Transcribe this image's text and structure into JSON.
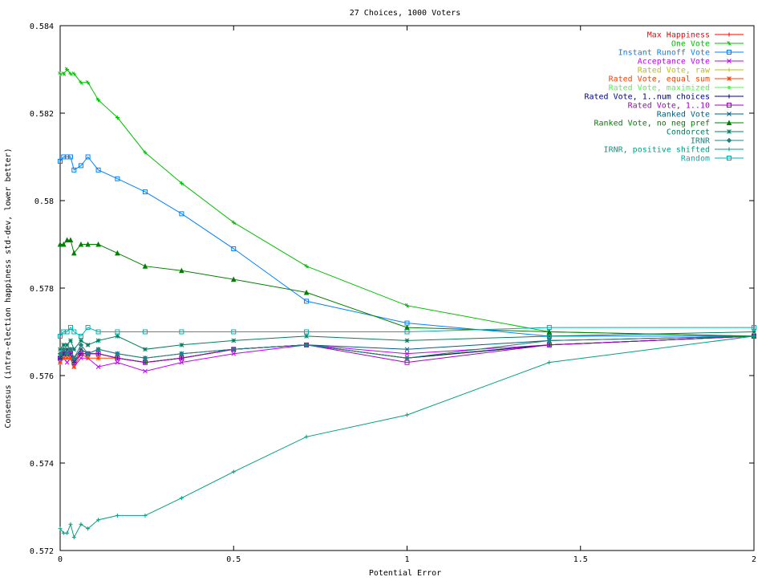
{
  "chart_data": {
    "type": "line",
    "title": "27 Choices, 1000 Voters",
    "xlabel": "Potential Error",
    "ylabel": "Consensus (intra-election happiness std-dev, lower better)",
    "xlim": [
      0,
      2
    ],
    "ylim": [
      0.572,
      0.584
    ],
    "xticks": [
      0,
      0.5,
      1,
      1.5,
      2
    ],
    "xtick_labels": [
      "0",
      "0.5",
      "1",
      "1.5",
      "2"
    ],
    "yticks": [
      0.572,
      0.574,
      0.576,
      0.578,
      0.58,
      0.582,
      0.584
    ],
    "ytick_labels": [
      "0.572",
      "0.574",
      "0.576",
      "0.578",
      "0.58",
      "0.582",
      "0.584"
    ],
    "grid": false,
    "legend_position": "top-right",
    "x": [
      0,
      0.01,
      0.02,
      0.03,
      0.04,
      0.06,
      0.08,
      0.11,
      0.165,
      0.245,
      0.35,
      0.5,
      0.71,
      1.0,
      1.41,
      2.0
    ],
    "series": [
      {
        "name": "Max Happiness",
        "color": "#ff0000",
        "marker": "plus",
        "values": [
          0.5764,
          0.5765,
          0.5766,
          0.5765,
          0.5763,
          0.5766,
          0.5765,
          0.5765,
          0.5764,
          0.5763,
          0.5764,
          0.5766,
          0.5767,
          0.5764,
          0.5767,
          0.5769
        ]
      },
      {
        "name": "One Vote",
        "color": "#00c000",
        "marker": "cross",
        "values": [
          0.5829,
          0.5829,
          0.583,
          0.5829,
          0.5829,
          0.5827,
          0.5827,
          0.5823,
          0.5819,
          0.5811,
          0.5804,
          0.5795,
          0.5785,
          0.5776,
          0.577,
          0.5769
        ]
      },
      {
        "name": "Instant Runoff Vote",
        "color": "#0080ff",
        "marker": "square",
        "values": [
          0.5809,
          0.581,
          0.581,
          0.581,
          0.5807,
          0.5808,
          0.581,
          0.5807,
          0.5805,
          0.5802,
          0.5797,
          0.5789,
          0.5777,
          0.5772,
          0.5769,
          0.5769
        ]
      },
      {
        "name": "Acceptance Vote",
        "color": "#c000ff",
        "marker": "x",
        "values": [
          0.5763,
          0.5764,
          0.5763,
          0.5764,
          0.5762,
          0.5764,
          0.5764,
          0.5762,
          0.5763,
          0.5761,
          0.5763,
          0.5765,
          0.5767,
          0.5765,
          0.5767,
          0.5769
        ]
      },
      {
        "name": "Rated Vote, raw",
        "color": "#c0c000",
        "marker": "plus",
        "values": [
          0.5764,
          0.5765,
          0.5765,
          0.5765,
          0.5763,
          0.5765,
          0.5765,
          0.5765,
          0.5764,
          0.5763,
          0.5764,
          0.5766,
          0.5767,
          0.5764,
          0.5768,
          0.5769
        ]
      },
      {
        "name": "Rated Vote, equal sum",
        "color": "#ff4000",
        "marker": "star",
        "values": [
          0.5763,
          0.5764,
          0.5764,
          0.5764,
          0.5762,
          0.5765,
          0.5764,
          0.5764,
          0.5764,
          0.5763,
          0.5764,
          0.5766,
          0.5767,
          0.5764,
          0.5767,
          0.5769
        ]
      },
      {
        "name": "Rated Vote, maximized",
        "color": "#40ff40",
        "marker": "dot",
        "values": [
          0.5764,
          0.5765,
          0.5765,
          0.5765,
          0.5763,
          0.5765,
          0.5765,
          0.5765,
          0.5764,
          0.5763,
          0.5764,
          0.5766,
          0.5767,
          0.5764,
          0.5767,
          0.5769
        ]
      },
      {
        "name": "Rated Vote, 1..num choices",
        "color": "#000080",
        "marker": "plus",
        "values": [
          0.5764,
          0.5765,
          0.5765,
          0.5765,
          0.5763,
          0.5765,
          0.5765,
          0.5765,
          0.5764,
          0.5763,
          0.5764,
          0.5766,
          0.5767,
          0.5764,
          0.5767,
          0.5769
        ]
      },
      {
        "name": "Rated Vote, 1..10",
        "color": "#a000c0",
        "marker": "square",
        "values": [
          0.5764,
          0.5765,
          0.5765,
          0.5765,
          0.5763,
          0.5765,
          0.5765,
          0.5765,
          0.5764,
          0.5763,
          0.5764,
          0.5766,
          0.5767,
          0.5763,
          0.5767,
          0.5769
        ]
      },
      {
        "name": "Ranked Vote",
        "color": "#006080",
        "marker": "x",
        "values": [
          0.5764,
          0.5765,
          0.5766,
          0.5766,
          0.5764,
          0.5766,
          0.5765,
          0.5766,
          0.5765,
          0.5764,
          0.5765,
          0.5766,
          0.5767,
          0.5766,
          0.5768,
          0.5769
        ]
      },
      {
        "name": "Ranked Vote, no neg pref",
        "color": "#008000",
        "marker": "triangle",
        "values": [
          0.579,
          0.579,
          0.5791,
          0.5791,
          0.5788,
          0.579,
          0.579,
          0.579,
          0.5788,
          0.5785,
          0.5784,
          0.5782,
          0.5779,
          0.5771,
          0.577,
          0.5769
        ]
      },
      {
        "name": "Condorcet",
        "color": "#008060",
        "marker": "star",
        "values": [
          0.5766,
          0.5767,
          0.5767,
          0.5768,
          0.5766,
          0.5768,
          0.5767,
          0.5768,
          0.5769,
          0.5766,
          0.5767,
          0.5768,
          0.5769,
          0.5768,
          0.5769,
          0.577
        ]
      },
      {
        "name": "IRNR",
        "color": "#208080",
        "marker": "diamond",
        "values": [
          0.5765,
          0.5766,
          0.5765,
          0.5766,
          0.5764,
          0.5767,
          0.5765,
          0.5766,
          0.5765,
          0.5764,
          0.5765,
          0.5766,
          0.5767,
          0.5764,
          0.5768,
          0.5769
        ]
      },
      {
        "name": "IRNR, positive shifted",
        "color": "#00a080",
        "marker": "plus",
        "values": [
          0.5725,
          0.5724,
          0.5724,
          0.5726,
          0.5723,
          0.5726,
          0.5725,
          0.5727,
          0.5728,
          0.5728,
          0.5732,
          0.5738,
          0.5746,
          0.5751,
          0.5763,
          0.5769
        ]
      },
      {
        "name": "Random",
        "color": "#00b0b0",
        "marker": "square",
        "values": [
          0.5769,
          0.577,
          0.577,
          0.5771,
          0.577,
          0.5769,
          0.5771,
          0.577,
          0.577,
          0.577,
          0.577,
          0.577,
          0.577,
          0.577,
          0.5771,
          0.5771
        ]
      }
    ]
  }
}
